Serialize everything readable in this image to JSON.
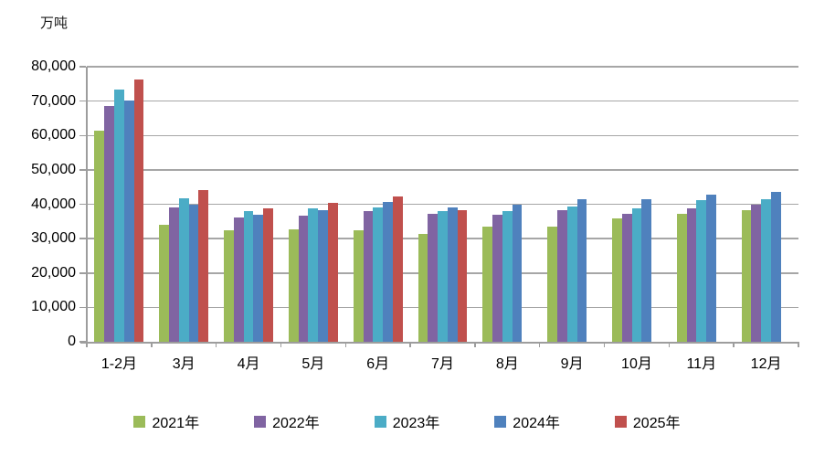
{
  "chart_data": {
    "type": "bar",
    "title": "",
    "unit_label": "万吨",
    "categories": [
      "1-2月",
      "3月",
      "4月",
      "5月",
      "6月",
      "7月",
      "8月",
      "9月",
      "10月",
      "11月",
      "12月"
    ],
    "series": [
      {
        "name": "2021年",
        "color": "#9BBB59",
        "values": [
          61500,
          34000,
          32300,
          32700,
          32300,
          31400,
          33500,
          33400,
          35800,
          37100,
          38300
        ]
      },
      {
        "name": "2022年",
        "color": "#8064A2",
        "values": [
          68500,
          39200,
          36200,
          36800,
          38100,
          37200,
          37000,
          38400,
          37100,
          38700,
          39800
        ]
      },
      {
        "name": "2023年",
        "color": "#4BACC6",
        "values": [
          73300,
          41800,
          38000,
          38700,
          39200,
          37900,
          37900,
          39300,
          38800,
          41300,
          41500
        ]
      },
      {
        "name": "2024年",
        "color": "#4F81BD",
        "values": [
          70300,
          40000,
          37000,
          38200,
          40600,
          39000,
          39800,
          41400,
          41500,
          42700,
          43700
        ]
      },
      {
        "name": "2025年",
        "color": "#C0504D",
        "values": [
          76300,
          44100,
          38800,
          40500,
          42300,
          38300,
          null,
          null,
          null,
          null,
          null
        ]
      }
    ],
    "ylim": [
      0,
      80000
    ],
    "ytick_step": 10000,
    "ytick_labels": [
      "0",
      "10,000",
      "20,000",
      "30,000",
      "40,000",
      "50,000",
      "60,000",
      "70,000",
      "80,000"
    ],
    "grid": true,
    "legend_position": "bottom",
    "colors": {
      "gridline": "#a6a6a6",
      "axis": "#9d9d9d",
      "text": "#000000"
    }
  }
}
